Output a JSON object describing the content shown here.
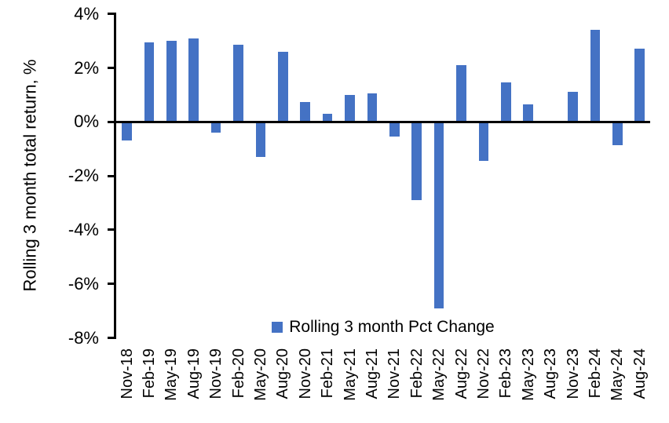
{
  "chart_data": {
    "type": "bar",
    "title": "",
    "xlabel": "",
    "ylabel": "Rolling 3 month total return, %",
    "legend_label": "Rolling 3 month Pct Change",
    "legend_position": "bottom-center",
    "bar_color": "#4472C4",
    "axis_color": "#000000",
    "background_color": "#FFFFFF",
    "grid": false,
    "ylim": [
      -8,
      4
    ],
    "yticks": [
      4,
      2,
      0,
      -2,
      -4,
      -6,
      -8
    ],
    "ytick_labels": [
      "4%",
      "2%",
      "0%",
      "-2%",
      "-4%",
      "-6%",
      "-8%"
    ],
    "categories": [
      "Nov-18",
      "Feb-19",
      "May-19",
      "Aug-19",
      "Nov-19",
      "Feb-20",
      "May-20",
      "Aug-20",
      "Nov-20",
      "Feb-21",
      "May-21",
      "Aug-21",
      "Nov-21",
      "Feb-22",
      "May-22",
      "Aug-22",
      "Nov-22",
      "Feb-23",
      "May-23",
      "Aug-23",
      "Nov-23",
      "Feb-24",
      "May-24",
      "Aug-24"
    ],
    "values": [
      -0.7,
      2.95,
      3.0,
      3.1,
      -0.4,
      2.85,
      -1.3,
      2.6,
      0.75,
      0.3,
      1.0,
      1.05,
      -0.55,
      -2.9,
      -6.9,
      2.1,
      -1.45,
      1.45,
      0.65,
      0.0,
      1.1,
      3.4,
      -0.85,
      2.7
    ]
  }
}
